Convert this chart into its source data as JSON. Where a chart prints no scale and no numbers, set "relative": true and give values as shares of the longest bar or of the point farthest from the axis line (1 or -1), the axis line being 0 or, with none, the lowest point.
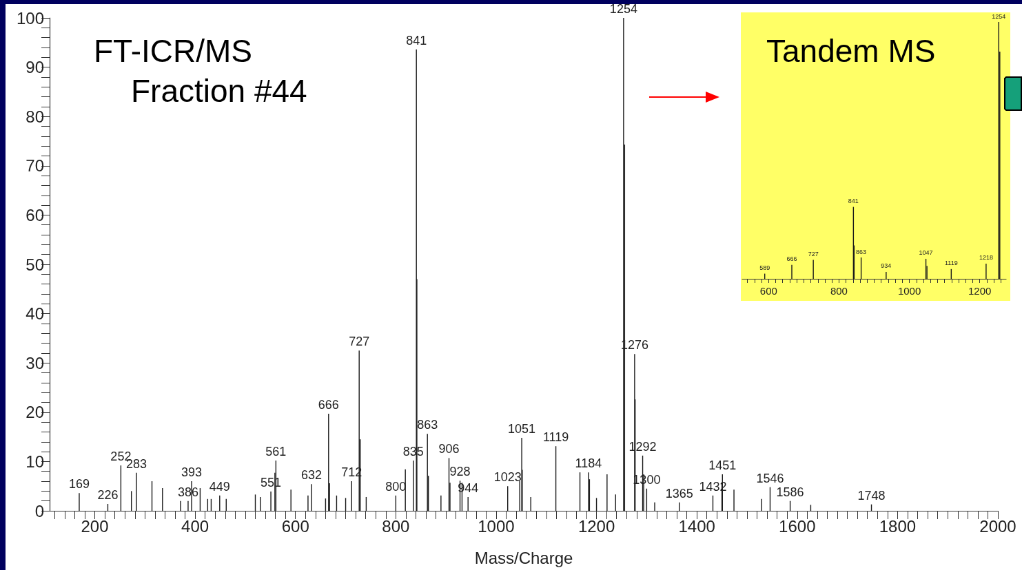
{
  "chart_data": [
    {
      "type": "bar",
      "title": "FT-ICR/MS",
      "subtitle": "Fraction #44",
      "xlabel": "Mass/Charge",
      "color": "#1a1a1a",
      "grid": false,
      "x": [
        169,
        226,
        252,
        273,
        283,
        314,
        335,
        371,
        386,
        393,
        410,
        425,
        432,
        449,
        462,
        520,
        530,
        551,
        559,
        561,
        591,
        625,
        632,
        660,
        666,
        668,
        682,
        700,
        712,
        727,
        729,
        741,
        800,
        819,
        835,
        841,
        842,
        863,
        865,
        890,
        906,
        908,
        928,
        932,
        944,
        1023,
        1047,
        1051,
        1052,
        1069,
        1119,
        1167,
        1184,
        1186,
        1200,
        1221,
        1238,
        1254,
        1256,
        1276,
        1277,
        1292,
        1294,
        1300,
        1316,
        1365,
        1432,
        1450,
        1451,
        1474,
        1529,
        1546,
        1586,
        1627,
        1748
      ],
      "values": [
        3.6,
        1.4,
        9.2,
        4.0,
        7.7,
        6.0,
        4.6,
        2.0,
        2.0,
        6.0,
        4.6,
        2.4,
        2.4,
        3.1,
        2.4,
        3.3,
        2.8,
        3.9,
        7.7,
        10.2,
        4.3,
        3.1,
        5.4,
        2.5,
        19.7,
        5.6,
        3.1,
        2.6,
        6.0,
        32.5,
        14.5,
        2.8,
        3.1,
        8.4,
        10.2,
        93.6,
        47.0,
        15.6,
        7.1,
        3.1,
        10.7,
        5.7,
        6.1,
        5.7,
        2.8,
        5.0,
        6.0,
        14.8,
        8.3,
        2.8,
        13.1,
        7.8,
        7.8,
        6.4,
        2.6,
        7.4,
        3.3,
        100,
        74.3,
        31.8,
        22.6,
        11.2,
        7.4,
        4.5,
        1.7,
        1.7,
        3.1,
        5.7,
        7.4,
        4.3,
        2.4,
        4.8,
        2.0,
        1.2,
        1.3
      ],
      "annotations": [
        {
          "text": "169",
          "x": 169,
          "y": 3.6
        },
        {
          "text": "226",
          "x": 226,
          "y": 1.4
        },
        {
          "text": "252",
          "x": 252,
          "y": 9.2
        },
        {
          "text": "283",
          "x": 283,
          "y": 7.7
        },
        {
          "text": "386",
          "x": 386,
          "y": 2.0
        },
        {
          "text": "393",
          "x": 393,
          "y": 6.0
        },
        {
          "text": "449",
          "x": 449,
          "y": 3.1
        },
        {
          "text": "551",
          "x": 551,
          "y": 3.9
        },
        {
          "text": "561",
          "x": 561,
          "y": 10.2
        },
        {
          "text": "632",
          "x": 632,
          "y": 5.4
        },
        {
          "text": "666",
          "x": 666,
          "y": 19.7
        },
        {
          "text": "712",
          "x": 712,
          "y": 6.0
        },
        {
          "text": "727",
          "x": 727,
          "y": 32.5
        },
        {
          "text": "800",
          "x": 800,
          "y": 3.1
        },
        {
          "text": "835",
          "x": 835,
          "y": 10.2
        },
        {
          "text": "841",
          "x": 841,
          "y": 93.6
        },
        {
          "text": "863",
          "x": 863,
          "y": 15.6
        },
        {
          "text": "906",
          "x": 906,
          "y": 10.7
        },
        {
          "text": "928",
          "x": 928,
          "y": 6.1
        },
        {
          "text": "944",
          "x": 944,
          "y": 2.8
        },
        {
          "text": "1023",
          "x": 1023,
          "y": 5.0
        },
        {
          "text": "1051",
          "x": 1051,
          "y": 14.8
        },
        {
          "text": "1119",
          "x": 1119,
          "y": 13.1
        },
        {
          "text": "1184",
          "x": 1184,
          "y": 7.8
        },
        {
          "text": "1254",
          "x": 1254,
          "y": 100
        },
        {
          "text": "1276",
          "x": 1276,
          "y": 31.8
        },
        {
          "text": "1292",
          "x": 1292,
          "y": 11.2
        },
        {
          "text": "1300",
          "x": 1300,
          "y": 4.5
        },
        {
          "text": "1365",
          "x": 1365,
          "y": 1.7
        },
        {
          "text": "1432",
          "x": 1432,
          "y": 3.1
        },
        {
          "text": "1451",
          "x": 1451,
          "y": 7.4
        },
        {
          "text": "1546",
          "x": 1546,
          "y": 4.8
        },
        {
          "text": "1586",
          "x": 1586,
          "y": 2.0
        },
        {
          "text": "1748",
          "x": 1748,
          "y": 1.3
        }
      ],
      "xlim": [
        110,
        2000
      ],
      "xticks": [
        {
          "value": 120,
          "label": null
        },
        {
          "value": 140,
          "label": null
        },
        {
          "value": 160,
          "label": null
        },
        {
          "value": 180,
          "label": null
        },
        200,
        {
          "value": 220,
          "label": null
        },
        {
          "value": 240,
          "label": null
        },
        {
          "value": 260,
          "label": null
        },
        {
          "value": 280,
          "label": null
        },
        {
          "value": 300,
          "label": null
        },
        {
          "value": 320,
          "label": null
        },
        {
          "value": 340,
          "label": null
        },
        {
          "value": 360,
          "label": null
        },
        {
          "value": 380,
          "label": null
        },
        400,
        {
          "value": 420,
          "label": null
        },
        {
          "value": 440,
          "label": null
        },
        {
          "value": 460,
          "label": null
        },
        {
          "value": 480,
          "label": null
        },
        {
          "value": 500,
          "label": null
        },
        {
          "value": 520,
          "label": null
        },
        {
          "value": 540,
          "label": null
        },
        {
          "value": 560,
          "label": null
        },
        {
          "value": 580,
          "label": null
        },
        600,
        {
          "value": 620,
          "label": null
        },
        {
          "value": 640,
          "label": null
        },
        {
          "value": 660,
          "label": null
        },
        {
          "value": 680,
          "label": null
        },
        {
          "value": 700,
          "label": null
        },
        {
          "value": 720,
          "label": null
        },
        {
          "value": 740,
          "label": null
        },
        {
          "value": 760,
          "label": null
        },
        {
          "value": 780,
          "label": null
        },
        800,
        {
          "value": 820,
          "label": null
        },
        {
          "value": 840,
          "label": null
        },
        {
          "value": 860,
          "label": null
        },
        {
          "value": 880,
          "label": null
        },
        {
          "value": 900,
          "label": null
        },
        {
          "value": 920,
          "label": null
        },
        {
          "value": 940,
          "label": null
        },
        {
          "value": 960,
          "label": null
        },
        {
          "value": 980,
          "label": null
        },
        1000,
        {
          "value": 1020,
          "label": null
        },
        {
          "value": 1040,
          "label": null
        },
        {
          "value": 1060,
          "label": null
        },
        {
          "value": 1080,
          "label": null
        },
        {
          "value": 1100,
          "label": null
        },
        {
          "value": 1120,
          "label": null
        },
        {
          "value": 1140,
          "label": null
        },
        {
          "value": 1160,
          "label": null
        },
        {
          "value": 1180,
          "label": null
        },
        1200,
        {
          "value": 1220,
          "label": null
        },
        {
          "value": 1240,
          "label": null
        },
        {
          "value": 1260,
          "label": null
        },
        {
          "value": 1280,
          "label": null
        },
        {
          "value": 1300,
          "label": null
        },
        {
          "value": 1320,
          "label": null
        },
        {
          "value": 1340,
          "label": null
        },
        {
          "value": 1360,
          "label": null
        },
        {
          "value": 1380,
          "label": null
        },
        1400,
        {
          "value": 1420,
          "label": null
        },
        {
          "value": 1440,
          "label": null
        },
        {
          "value": 1460,
          "label": null
        },
        {
          "value": 1480,
          "label": null
        },
        {
          "value": 1500,
          "label": null
        },
        {
          "value": 1520,
          "label": null
        },
        {
          "value": 1540,
          "label": null
        },
        {
          "value": 1560,
          "label": null
        },
        {
          "value": 1580,
          "label": null
        },
        1600,
        {
          "value": 1620,
          "label": null
        },
        {
          "value": 1640,
          "label": null
        },
        {
          "value": 1660,
          "label": null
        },
        {
          "value": 1680,
          "label": null
        },
        {
          "value": 1700,
          "label": null
        },
        {
          "value": 1720,
          "label": null
        },
        {
          "value": 1740,
          "label": null
        },
        {
          "value": 1760,
          "label": null
        },
        {
          "value": 1780,
          "label": null
        },
        1800,
        {
          "value": 1820,
          "label": null
        },
        {
          "value": 1840,
          "label": null
        },
        {
          "value": 1860,
          "label": null
        },
        {
          "value": 1880,
          "label": null
        },
        {
          "value": 1900,
          "label": null
        },
        {
          "value": 1920,
          "label": null
        },
        {
          "value": 1940,
          "label": null
        },
        {
          "value": 1960,
          "label": null
        },
        {
          "value": 1980,
          "label": null
        },
        2000
      ],
      "ylim": [
        0,
        100
      ],
      "yticks": [
        0,
        {
          "value": 2,
          "label": null
        },
        {
          "value": 4,
          "label": null
        },
        {
          "value": 6,
          "label": null
        },
        {
          "value": 8,
          "label": null
        },
        10,
        {
          "value": 12,
          "label": null
        },
        {
          "value": 14,
          "label": null
        },
        {
          "value": 16,
          "label": null
        },
        {
          "value": 18,
          "label": null
        },
        20,
        {
          "value": 22,
          "label": null
        },
        {
          "value": 24,
          "label": null
        },
        {
          "value": 26,
          "label": null
        },
        {
          "value": 28,
          "label": null
        },
        30,
        {
          "value": 32,
          "label": null
        },
        {
          "value": 34,
          "label": null
        },
        {
          "value": 36,
          "label": null
        },
        {
          "value": 38,
          "label": null
        },
        40,
        {
          "value": 42,
          "label": null
        },
        {
          "value": 44,
          "label": null
        },
        {
          "value": 46,
          "label": null
        },
        {
          "value": 48,
          "label": null
        },
        50,
        {
          "value": 52,
          "label": null
        },
        {
          "value": 54,
          "label": null
        },
        {
          "value": 56,
          "label": null
        },
        {
          "value": 58,
          "label": null
        },
        60,
        {
          "value": 62,
          "label": null
        },
        {
          "value": 64,
          "label": null
        },
        {
          "value": 66,
          "label": null
        },
        {
          "value": 68,
          "label": null
        },
        70,
        {
          "value": 72,
          "label": null
        },
        {
          "value": 74,
          "label": null
        },
        {
          "value": 76,
          "label": null
        },
        {
          "value": 78,
          "label": null
        },
        80,
        {
          "value": 82,
          "label": null
        },
        {
          "value": 84,
          "label": null
        },
        {
          "value": 86,
          "label": null
        },
        {
          "value": 88,
          "label": null
        },
        90,
        {
          "value": 92,
          "label": null
        },
        {
          "value": 94,
          "label": null
        },
        {
          "value": 96,
          "label": null
        },
        {
          "value": 98,
          "label": null
        },
        100
      ]
    },
    {
      "type": "bar",
      "title": "Tandem MS",
      "relative": true,
      "color": "#1a1a1a",
      "grid": false,
      "x": [
        589,
        666,
        727,
        841,
        843,
        863,
        934,
        1047,
        1050,
        1119,
        1218,
        1254,
        1257
      ],
      "values": [
        0.02,
        0.054,
        0.074,
        0.28,
        0.13,
        0.083,
        0.027,
        0.078,
        0.05,
        0.038,
        0.059,
        1,
        0.885
      ],
      "annotations": [
        {
          "text": "589",
          "x": 589,
          "y": 0.02
        },
        {
          "text": "666",
          "x": 666,
          "y": 0.054
        },
        {
          "text": "727",
          "x": 727,
          "y": 0.074
        },
        {
          "text": "841",
          "x": 841,
          "y": 0.28
        },
        {
          "text": "863",
          "x": 863,
          "y": 0.083
        },
        {
          "text": "934",
          "x": 934,
          "y": 0.027
        },
        {
          "text": "1047",
          "x": 1047,
          "y": 0.078
        },
        {
          "text": "1119",
          "x": 1119,
          "y": 0.038
        },
        {
          "text": "1218",
          "x": 1218,
          "y": 0.059
        },
        {
          "text": "1254",
          "x": 1254,
          "y": 1
        }
      ],
      "xlim": [
        525,
        1275
      ],
      "xticks": [
        {
          "value": 540,
          "label": null
        },
        {
          "value": 560,
          "label": null
        },
        {
          "value": 580,
          "label": null
        },
        600,
        {
          "value": 620,
          "label": null
        },
        {
          "value": 640,
          "label": null
        },
        {
          "value": 660,
          "label": null
        },
        {
          "value": 680,
          "label": null
        },
        {
          "value": 700,
          "label": null
        },
        {
          "value": 720,
          "label": null
        },
        {
          "value": 740,
          "label": null
        },
        {
          "value": 760,
          "label": null
        },
        {
          "value": 780,
          "label": null
        },
        800,
        {
          "value": 820,
          "label": null
        },
        {
          "value": 840,
          "label": null
        },
        {
          "value": 860,
          "label": null
        },
        {
          "value": 880,
          "label": null
        },
        {
          "value": 900,
          "label": null
        },
        {
          "value": 920,
          "label": null
        },
        {
          "value": 940,
          "label": null
        },
        {
          "value": 960,
          "label": null
        },
        {
          "value": 980,
          "label": null
        },
        1000,
        {
          "value": 1020,
          "label": null
        },
        {
          "value": 1040,
          "label": null
        },
        {
          "value": 1060,
          "label": null
        },
        {
          "value": 1080,
          "label": null
        },
        {
          "value": 1100,
          "label": null
        },
        {
          "value": 1120,
          "label": null
        },
        {
          "value": 1140,
          "label": null
        },
        {
          "value": 1160,
          "label": null
        },
        {
          "value": 1180,
          "label": null
        },
        1200,
        {
          "value": 1220,
          "label": null
        },
        {
          "value": 1240,
          "label": null
        },
        {
          "value": 1260,
          "label": null
        }
      ]
    }
  ]
}
